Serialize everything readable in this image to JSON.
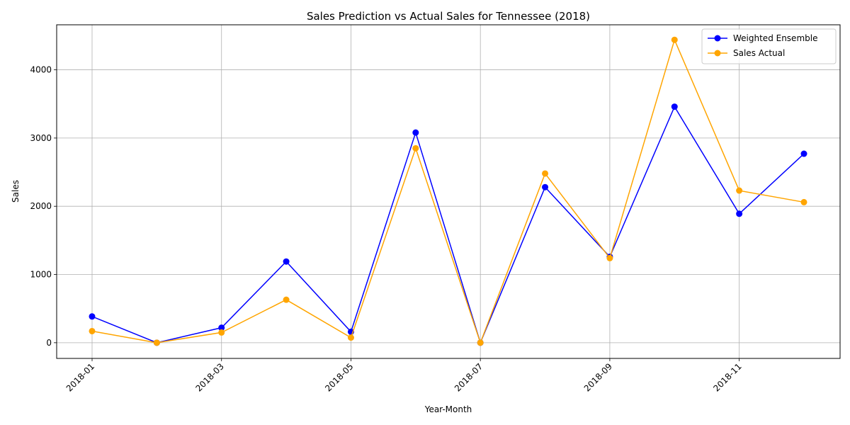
{
  "chart_data": {
    "type": "line",
    "title": "Sales Prediction vs Actual Sales for Tennessee (2018)",
    "xlabel": "Year-Month",
    "ylabel": "Sales",
    "x": [
      "2018-01",
      "2018-02",
      "2018-03",
      "2018-04",
      "2018-05",
      "2018-06",
      "2018-07",
      "2018-08",
      "2018-09",
      "2018-10",
      "2018-11",
      "2018-12"
    ],
    "xticks": [
      "2018-01",
      "2018-03",
      "2018-05",
      "2018-07",
      "2018-09",
      "2018-11"
    ],
    "yticks": [
      0,
      1000,
      2000,
      3000,
      4000
    ],
    "ylim": [
      -230,
      4660
    ],
    "grid": true,
    "legend_position": "top-right",
    "series": [
      {
        "name": "Weighted Ensemble",
        "color": "#0000ff",
        "values": [
          385,
          0,
          220,
          1190,
          160,
          3080,
          0,
          2280,
          1260,
          3460,
          1890,
          2770
        ]
      },
      {
        "name": "Sales Actual",
        "color": "#ffa500",
        "values": [
          170,
          0,
          150,
          630,
          75,
          2850,
          0,
          2480,
          1240,
          4440,
          2230,
          2060
        ]
      }
    ]
  }
}
